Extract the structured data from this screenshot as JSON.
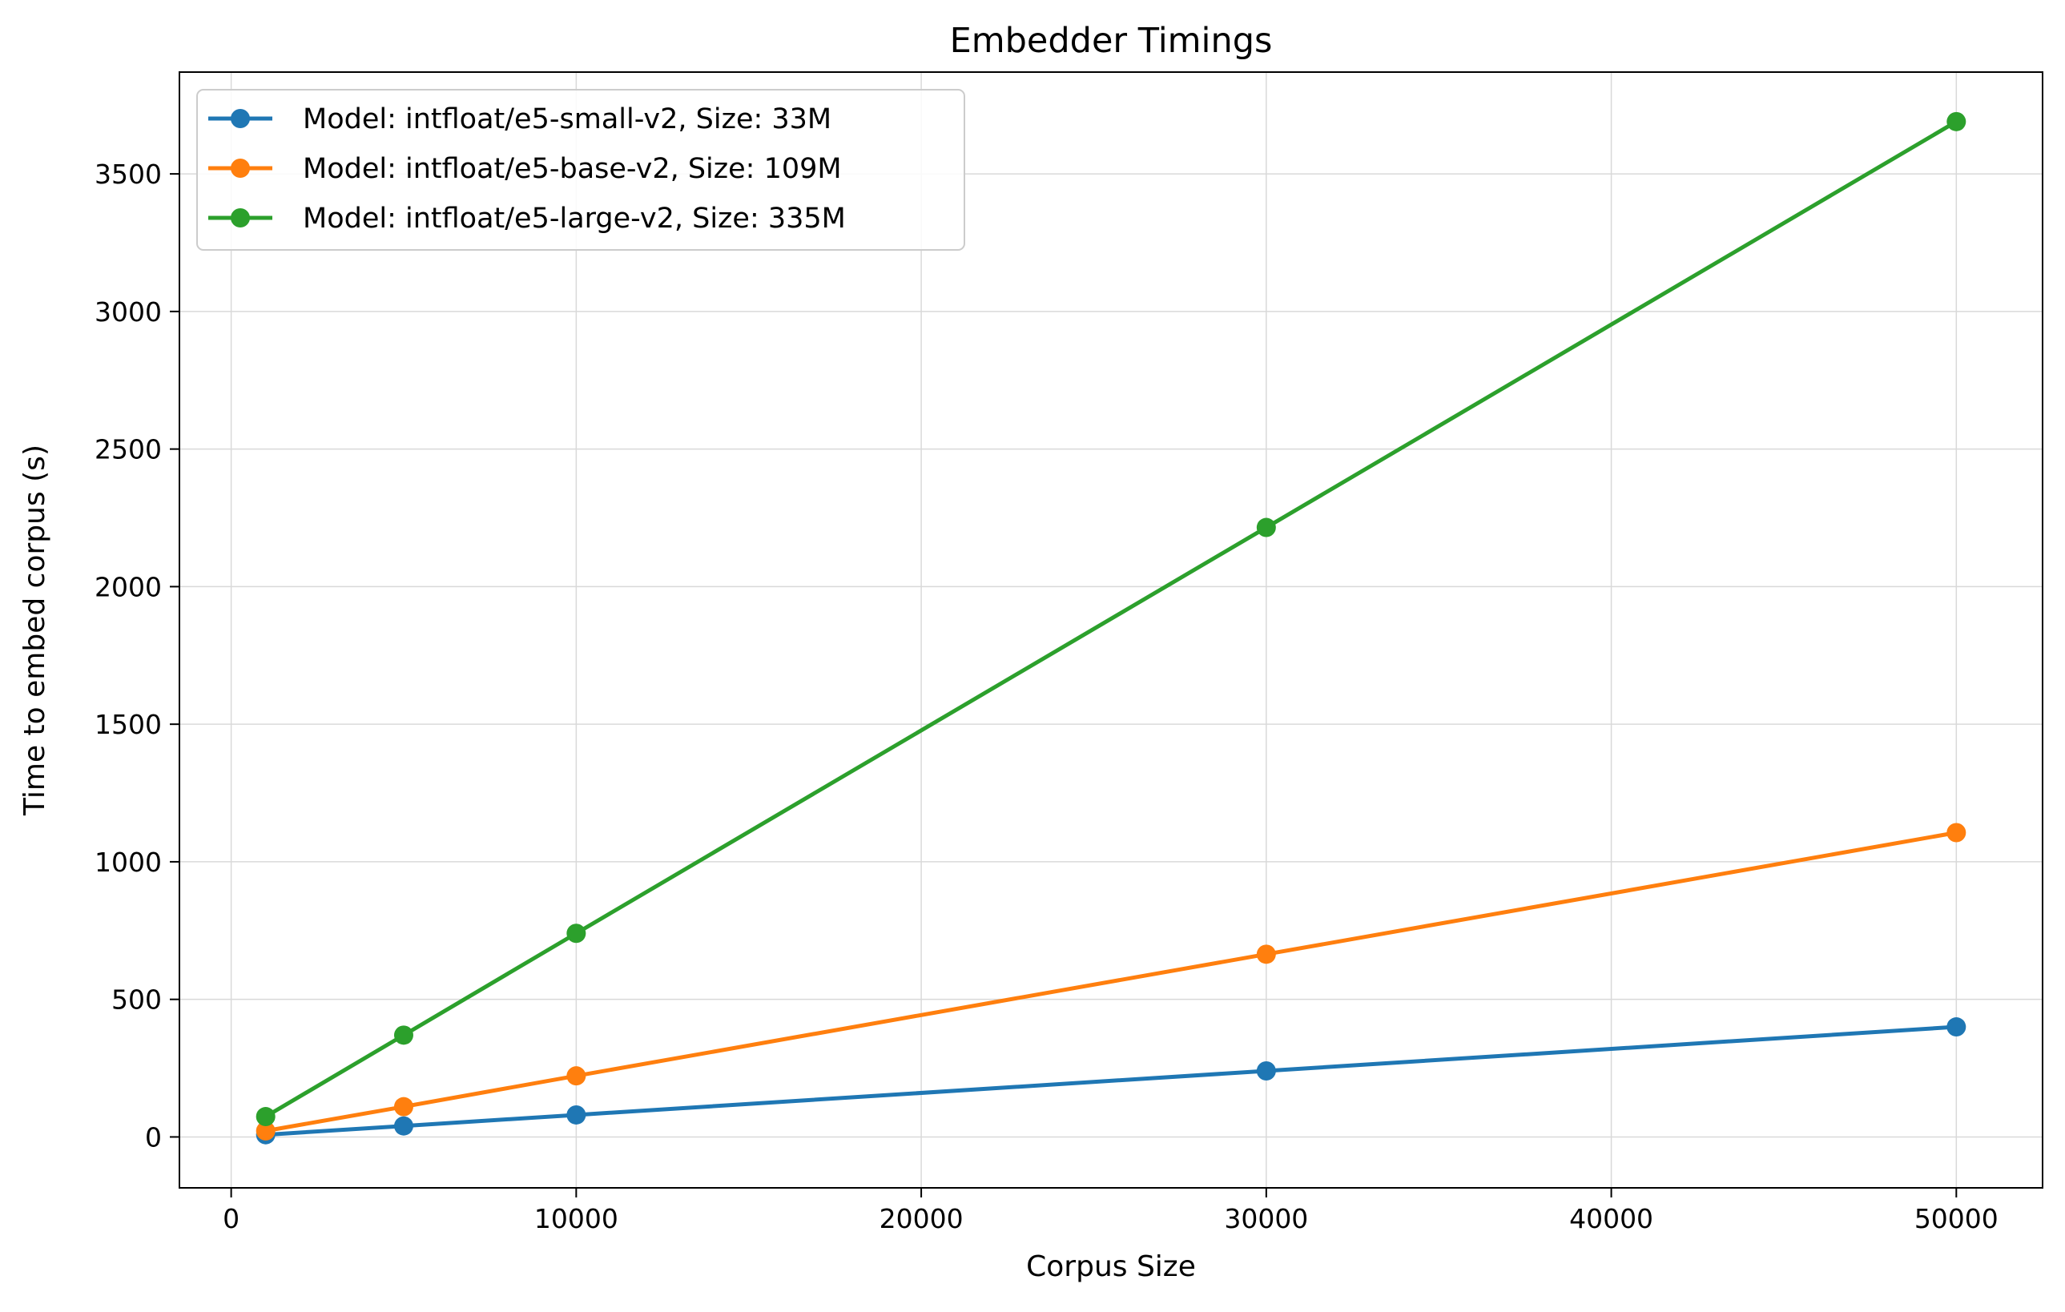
{
  "chart_data": {
    "type": "line",
    "title": "Embedder Timings",
    "xlabel": "Corpus Size",
    "ylabel": "Time to embed corpus (s)",
    "xlim": [
      -1500,
      52500
    ],
    "ylim": [
      -185,
      3870
    ],
    "xticks": [
      0,
      10000,
      20000,
      30000,
      40000,
      50000
    ],
    "yticks": [
      0,
      500,
      1000,
      1500,
      2000,
      2500,
      3000,
      3500
    ],
    "grid": true,
    "legend_position": "upper-left",
    "x": [
      1000,
      5000,
      10000,
      30000,
      50000
    ],
    "series": [
      {
        "name": "Model: intfloat/e5-small-v2, Size: 33M",
        "color": "#1f77b4",
        "values": [
          8,
          40,
          80,
          240,
          400
        ]
      },
      {
        "name": "Model: intfloat/e5-base-v2, Size: 109M",
        "color": "#ff7f0e",
        "values": [
          22,
          110,
          222,
          664,
          1106
        ]
      },
      {
        "name": "Model: intfloat/e5-large-v2, Size: 335M",
        "color": "#2ca02c",
        "values": [
          74,
          370,
          740,
          2215,
          3690
        ]
      }
    ]
  }
}
